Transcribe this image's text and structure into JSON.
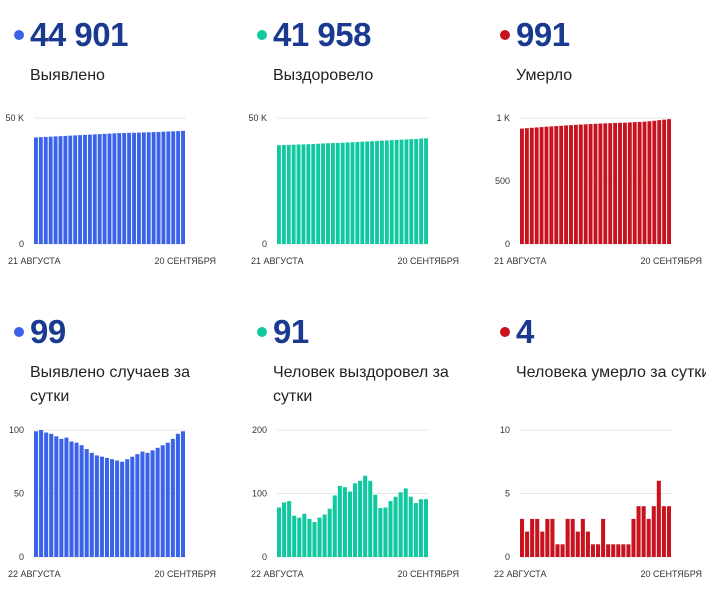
{
  "panels": [
    {
      "value": "44 901",
      "label": "Выявлено",
      "color": "#3b63ea",
      "chart_data": {
        "type": "bar",
        "baseline": "0",
        "yticks": [
          {
            "v": 50000,
            "label": "50 K"
          },
          {
            "v": 0,
            "label": "0"
          }
        ],
        "ylim": [
          0,
          50000
        ],
        "xlabel_start": "21 АВГУСТА",
        "xlabel_end": "20 СЕНТЯБРЯ",
        "values": [
          42300,
          42400,
          42500,
          42600,
          42700,
          42800,
          42900,
          43000,
          43100,
          43200,
          43300,
          43400,
          43500,
          43600,
          43700,
          43800,
          43900,
          44000,
          44050,
          44100,
          44150,
          44200,
          44300,
          44350,
          44400,
          44450,
          44550,
          44650,
          44700,
          44800,
          44901
        ]
      }
    },
    {
      "value": "41 958",
      "label": "Выздоровело",
      "color": "#10c9a0",
      "chart_data": {
        "type": "bar",
        "yticks": [
          {
            "v": 50000,
            "label": "50 K"
          },
          {
            "v": 0,
            "label": "0"
          }
        ],
        "ylim": [
          0,
          50000
        ],
        "xlabel_start": "21 АВГУСТА",
        "xlabel_end": "20 СЕНТЯБРЯ",
        "values": [
          39200,
          39300,
          39350,
          39400,
          39500,
          39550,
          39600,
          39700,
          39800,
          39900,
          40000,
          40050,
          40100,
          40200,
          40300,
          40400,
          40500,
          40600,
          40700,
          40800,
          40900,
          41000,
          41100,
          41200,
          41300,
          41400,
          41500,
          41600,
          41700,
          41850,
          41958
        ]
      }
    },
    {
      "value": "991",
      "label": "Умерло",
      "color": "#c8121e",
      "chart_data": {
        "type": "bar",
        "yticks": [
          {
            "v": 1000,
            "label": "1 K"
          },
          {
            "v": 500,
            "label": "500"
          },
          {
            "v": 0,
            "label": "0"
          }
        ],
        "ylim": [
          0,
          1000
        ],
        "xlabel_start": "21 АВГУСТА",
        "xlabel_end": "20 СЕНТЯБРЯ",
        "values": [
          916,
          919,
          922,
          925,
          928,
          931,
          933,
          936,
          938,
          941,
          943,
          946,
          948,
          950,
          952,
          954,
          956,
          958,
          959,
          961,
          962,
          963,
          965,
          967,
          969,
          971,
          974,
          978,
          983,
          987,
          991
        ]
      }
    },
    {
      "value": "99",
      "label": "Выявлено случаев за сутки",
      "color": "#3b63ea",
      "chart_data": {
        "type": "bar",
        "yticks": [
          {
            "v": 100,
            "label": "100"
          },
          {
            "v": 50,
            "label": "50"
          },
          {
            "v": 0,
            "label": "0"
          }
        ],
        "ylim": [
          0,
          100
        ],
        "xlabel_start": "22 АВГУСТА",
        "xlabel_end": "20 СЕНТЯБРЯ",
        "values": [
          99,
          100,
          98,
          97,
          95,
          93,
          94,
          91,
          90,
          88,
          85,
          82,
          80,
          79,
          78,
          77,
          76,
          75,
          77,
          79,
          81,
          83,
          82,
          84,
          86,
          88,
          90,
          93,
          97,
          99
        ]
      }
    },
    {
      "value": "91",
      "label": "Человек выздоровел за сутки",
      "color": "#10c9a0",
      "chart_data": {
        "type": "bar",
        "yticks": [
          {
            "v": 200,
            "label": "200"
          },
          {
            "v": 100,
            "label": "100"
          },
          {
            "v": 0,
            "label": "0"
          }
        ],
        "ylim": [
          0,
          200
        ],
        "xlabel_start": "22 АВГУСТА",
        "xlabel_end": "20 СЕНТЯБРЯ",
        "values": [
          78,
          86,
          88,
          65,
          62,
          68,
          60,
          55,
          62,
          67,
          76,
          97,
          112,
          110,
          103,
          116,
          120,
          128,
          120,
          98,
          77,
          78,
          88,
          95,
          102,
          108,
          95,
          85,
          91,
          91
        ]
      }
    },
    {
      "value": "4",
      "label": "Человека умерло за сутки",
      "color": "#c8121e",
      "chart_data": {
        "type": "bar",
        "yticks": [
          {
            "v": 10,
            "label": "10"
          },
          {
            "v": 5,
            "label": "5"
          },
          {
            "v": 0,
            "label": "0"
          }
        ],
        "ylim": [
          0,
          10
        ],
        "xlabel_start": "22 АВГУСТА",
        "xlabel_end": "20 СЕНТЯБРЯ",
        "values": [
          3,
          2,
          3,
          3,
          2,
          3,
          3,
          1,
          1,
          3,
          3,
          2,
          3,
          2,
          1,
          1,
          3,
          1,
          1,
          1,
          1,
          1,
          3,
          4,
          4,
          3,
          4,
          6,
          4,
          4
        ]
      }
    }
  ]
}
